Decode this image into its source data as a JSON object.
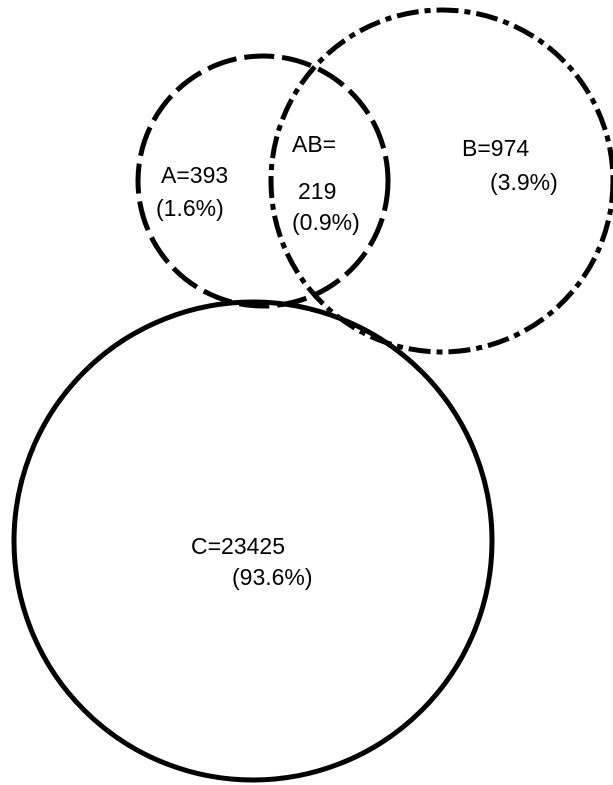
{
  "diagram": {
    "type": "venn",
    "stroke_color": "#000000",
    "background_color": "#ffffff",
    "sets": [
      {
        "id": "A",
        "line_style": "dashed",
        "count_label": "A=393",
        "percent_label": "(1.6%)"
      },
      {
        "id": "B",
        "line_style": "dashed",
        "count_label": "B=974",
        "percent_label": "(3.9%)"
      },
      {
        "id": "C",
        "line_style": "solid",
        "count_label": "C=23425",
        "percent_label": "(93.6%)"
      }
    ],
    "intersections": [
      {
        "id": "AB",
        "label": "AB=",
        "count_label": "219",
        "percent_label": "(0.9%)"
      }
    ]
  }
}
